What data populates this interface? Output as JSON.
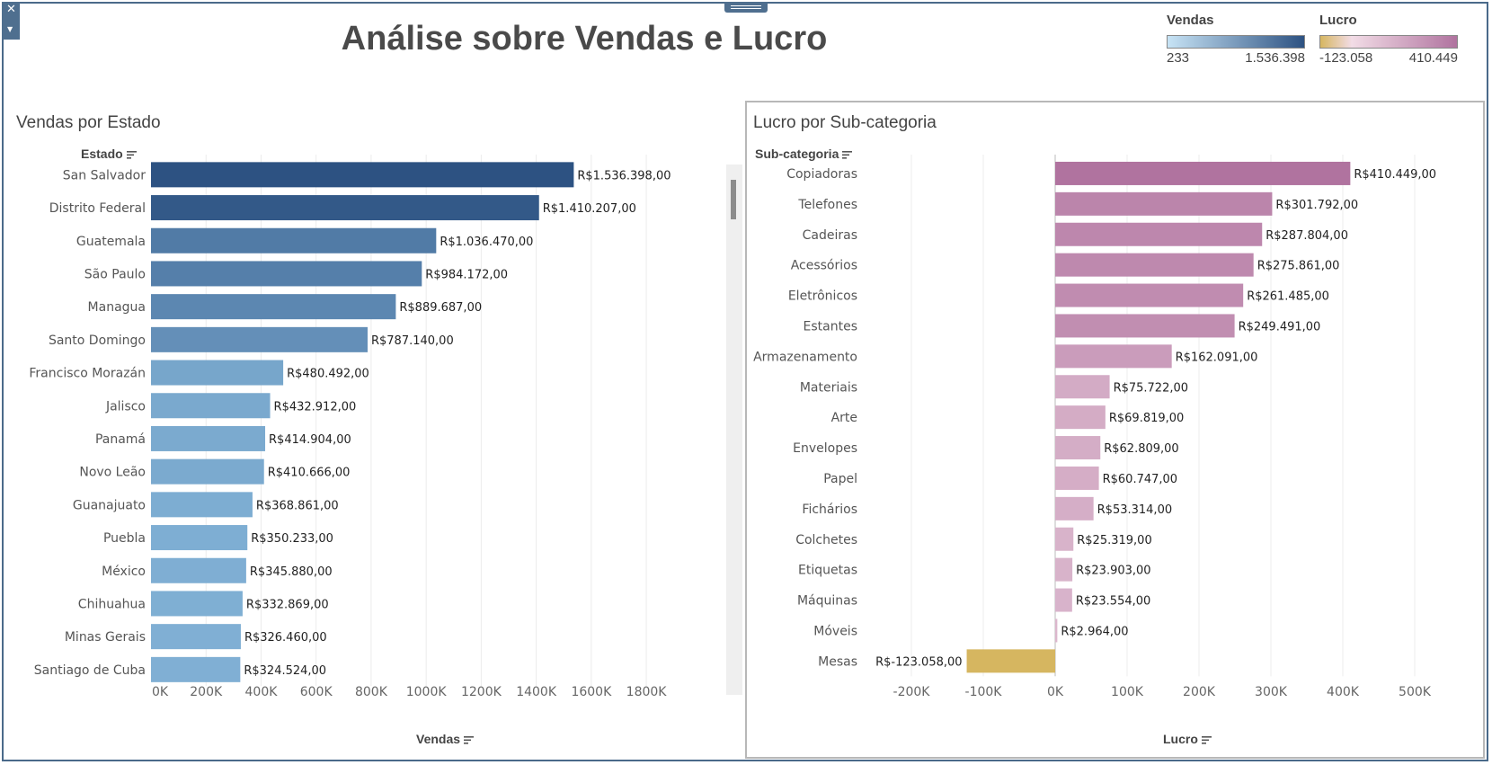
{
  "dashboard": {
    "title": "Análise sobre Vendas e Lucro"
  },
  "colors": {
    "vendas_ramp": [
      "#c7e3f5",
      "#2d5282"
    ],
    "lucro_negative": "#d6b660",
    "lucro_ramp": [
      "#f2dce6",
      "#b0739f"
    ],
    "frame": "#4a6a8a"
  },
  "icons": [
    "close-icon",
    "caret-down-icon",
    "drag-handle-icon",
    "sort-icon"
  ],
  "legend": {
    "vendas": {
      "title": "Vendas",
      "min": "233",
      "max": "1.536.398"
    },
    "lucro": {
      "title": "Lucro",
      "min": "-123.058",
      "max": "410.449"
    }
  },
  "chart_data": [
    {
      "type": "bar",
      "orientation": "horizontal",
      "title": "Vendas por Estado",
      "ylabel": "Estado",
      "xlabel": "Vendas",
      "xlim": [
        0,
        1950000
      ],
      "xticks": [
        0,
        200000,
        400000,
        600000,
        800000,
        1000000,
        1200000,
        1400000,
        1600000,
        1800000
      ],
      "xtick_labels": [
        "0K",
        "200K",
        "400K",
        "600K",
        "800K",
        "1000K",
        "1200K",
        "1400K",
        "1600K",
        "1800K"
      ],
      "grid": "vertical",
      "categories": [
        "San Salvador",
        "Distrito Federal",
        "Guatemala",
        "São Paulo",
        "Managua",
        "Santo Domingo",
        "Francisco Morazán",
        "Jalisco",
        "Panamá",
        "Novo Leão",
        "Guanajuato",
        "Puebla",
        "México",
        "Chihuahua",
        "Minas Gerais",
        "Santiago de Cuba"
      ],
      "values": [
        1536398,
        1410207,
        1036470,
        984172,
        889687,
        787140,
        480492,
        432912,
        414904,
        410666,
        368861,
        350233,
        345880,
        332869,
        326460,
        324524
      ],
      "value_labels": [
        "R$1.536.398,00",
        "R$1.410.207,00",
        "R$1.036.470,00",
        "R$984.172,00",
        "R$889.687,00",
        "R$787.140,00",
        "R$480.492,00",
        "R$432.912,00",
        "R$414.904,00",
        "R$410.666,00",
        "R$368.861,00",
        "R$350.233,00",
        "R$345.880,00",
        "R$332.869,00",
        "R$326.460,00",
        "R$324.524,00"
      ]
    },
    {
      "type": "bar",
      "orientation": "horizontal",
      "title": "Lucro por Sub-categoria",
      "ylabel": "Sub-categoria",
      "xlabel": "Lucro",
      "xlim": [
        -270000,
        530000
      ],
      "xticks": [
        -200000,
        -100000,
        0,
        100000,
        200000,
        300000,
        400000,
        500000
      ],
      "xtick_labels": [
        "-200K",
        "-100K",
        "0K",
        "100K",
        "200K",
        "300K",
        "400K",
        "500K"
      ],
      "grid": "vertical",
      "categories": [
        "Copiadoras",
        "Telefones",
        "Cadeiras",
        "Acessórios",
        "Eletrônicos",
        "Estantes",
        "Armazenamento",
        "Materiais",
        "Arte",
        "Envelopes",
        "Papel",
        "Fichários",
        "Colchetes",
        "Etiquetas",
        "Máquinas",
        "Móveis",
        "Mesas"
      ],
      "values": [
        410449,
        301792,
        287804,
        275861,
        261485,
        249491,
        162091,
        75722,
        69819,
        62809,
        60747,
        53314,
        25319,
        23903,
        23554,
        2964,
        -123058
      ],
      "value_labels": [
        "R$410.449,00",
        "R$301.792,00",
        "R$287.804,00",
        "R$275.861,00",
        "R$261.485,00",
        "R$249.491,00",
        "R$162.091,00",
        "R$75.722,00",
        "R$69.819,00",
        "R$62.809,00",
        "R$60.747,00",
        "R$53.314,00",
        "R$25.319,00",
        "R$23.903,00",
        "R$23.554,00",
        "R$2.964,00",
        "R$-123.058,00"
      ]
    }
  ]
}
